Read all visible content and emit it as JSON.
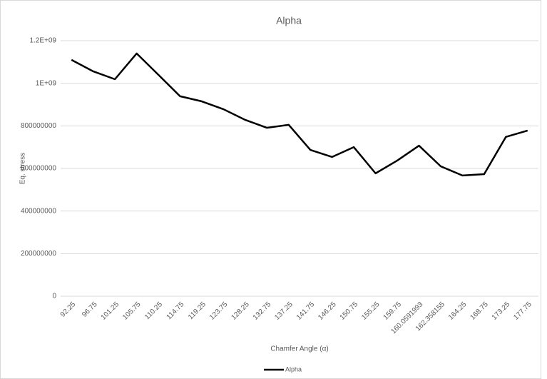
{
  "chart_data": {
    "type": "line",
    "title": "Alpha",
    "x_label": "Chamfer Angle (α)",
    "y_label": "Eq. stress",
    "categories": [
      "92.25",
      "96.75",
      "101.25",
      "105.75",
      "110.25",
      "114.75",
      "119.25",
      "123.75",
      "128.25",
      "132.75",
      "137.25",
      "141.75",
      "146.25",
      "150.75",
      "155.25",
      "159.75",
      "160.0591993",
      "162.358155",
      "164.25",
      "168.75",
      "173.25",
      "177.75"
    ],
    "series": [
      {
        "name": "Alpha",
        "color": "#000000",
        "values": [
          1110000000,
          1056000000,
          1019000000,
          1140000000,
          1040000000,
          939000000,
          915000000,
          878000000,
          828000000,
          791000000,
          805000000,
          687000000,
          654000000,
          700000000,
          577000000,
          637000000,
          707000000,
          610000000,
          567000000,
          573000000,
          748000000,
          778000000
        ]
      }
    ],
    "ylim": [
      0,
      1200000000
    ],
    "yticks": [
      0,
      200000000,
      400000000,
      600000000,
      800000000,
      {
        "value": 1000000000,
        "label": "1E+09"
      },
      {
        "value": 1200000000,
        "label": "1.2E+09"
      }
    ],
    "grid": true,
    "legend": "bottom"
  }
}
